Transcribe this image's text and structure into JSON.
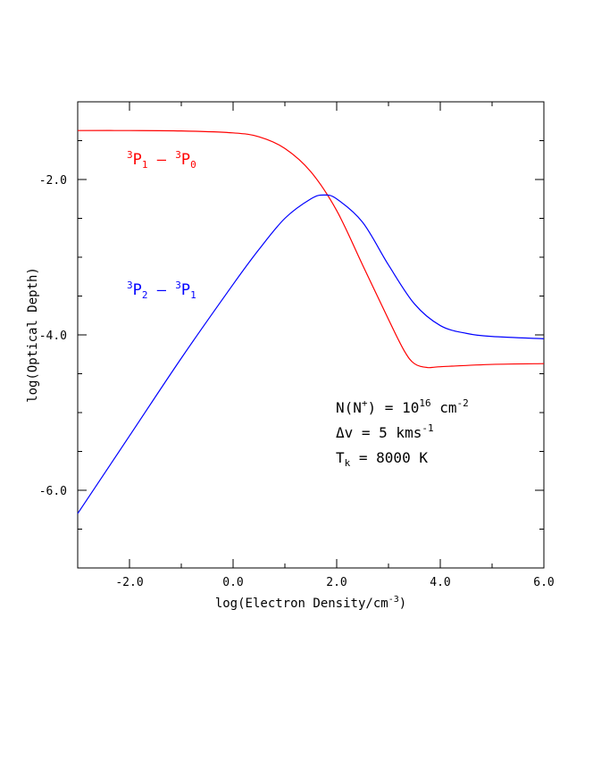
{
  "chart_data": {
    "type": "line",
    "xlabel": "log(Electron Density/cm",
    "xlabel_sup": "-3",
    "xlabel_end": ")",
    "ylabel": "log(Optical Depth)",
    "xlim": [
      -3.0,
      6.0
    ],
    "ylim": [
      -7.0,
      -1.0
    ],
    "x_ticks": [
      -2.0,
      0.0,
      2.0,
      4.0,
      6.0
    ],
    "x_tick_labels": [
      "-2.0",
      "0.0",
      "2.0",
      "4.0",
      "6.0"
    ],
    "y_ticks": [
      -2.0,
      -4.0,
      -6.0
    ],
    "y_tick_labels": [
      "-2.0",
      "-4.0",
      "-6.0"
    ],
    "grid": false,
    "series": [
      {
        "name": "3P1 - 3P0",
        "label_parts": {
          "a_sup": "3",
          "a_main": "P",
          "a_sub": "1",
          "sep": " – ",
          "b_sup": "3",
          "b_main": "P",
          "b_sub": "0"
        },
        "color": "#ff0000",
        "points": [
          [
            -3.0,
            -1.37
          ],
          [
            -2.0,
            -1.37
          ],
          [
            -1.0,
            -1.375
          ],
          [
            0.0,
            -1.4
          ],
          [
            0.5,
            -1.45
          ],
          [
            1.0,
            -1.6
          ],
          [
            1.5,
            -1.9
          ],
          [
            2.0,
            -2.4
          ],
          [
            2.5,
            -3.1
          ],
          [
            3.0,
            -3.8
          ],
          [
            3.3,
            -4.2
          ],
          [
            3.5,
            -4.37
          ],
          [
            3.75,
            -4.42
          ],
          [
            4.0,
            -4.41
          ],
          [
            5.0,
            -4.38
          ],
          [
            6.0,
            -4.37
          ]
        ]
      },
      {
        "name": "3P2 - 3P1",
        "label_parts": {
          "a_sup": "3",
          "a_main": "P",
          "a_sub": "2",
          "sep": " – ",
          "b_sup": "3",
          "b_main": "P",
          "b_sub": "1"
        },
        "color": "#0000ff",
        "points": [
          [
            -3.0,
            -6.3
          ],
          [
            -2.0,
            -5.3
          ],
          [
            -1.0,
            -4.3
          ],
          [
            0.0,
            -3.35
          ],
          [
            0.5,
            -2.9
          ],
          [
            1.0,
            -2.5
          ],
          [
            1.5,
            -2.25
          ],
          [
            1.75,
            -2.2
          ],
          [
            2.0,
            -2.25
          ],
          [
            2.5,
            -2.55
          ],
          [
            3.0,
            -3.1
          ],
          [
            3.5,
            -3.6
          ],
          [
            4.0,
            -3.88
          ],
          [
            4.5,
            -3.98
          ],
          [
            5.0,
            -4.02
          ],
          [
            6.0,
            -4.05
          ]
        ]
      }
    ],
    "annotation": {
      "line1_pre": "N(N",
      "line1_sup1": "+",
      "line1_mid": ") = 10",
      "line1_sup2": "16",
      "line1_unit": " cm",
      "line1_sup3": "-2",
      "line2_pre": "Δv = 5 kms",
      "line2_sup": "-1",
      "line3_main": "T",
      "line3_sub": "k",
      "line3_rest": " = 8000 K"
    }
  }
}
